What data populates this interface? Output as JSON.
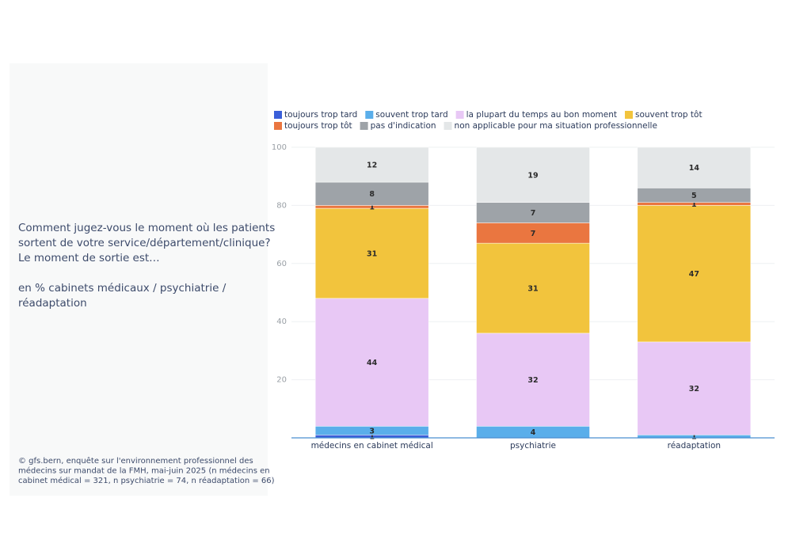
{
  "question_lines": [
    "Comment jugez-vous le moment où les patients",
    "sortent de votre service/département/clinique?",
    "Le moment de sortie est…"
  ],
  "subtitle_lines": [
    "en % cabinets médicaux / psychiatrie /",
    "réadaptation"
  ],
  "source_lines": [
    "© gfs.bern, enquête sur l'environnement professionnel des",
    "médecins sur mandat de la FMH, mai-juin 2025 (n médecins en",
    "cabinet médical = 321, n psychiatrie = 74, n réadaptation = 66)"
  ],
  "chart_data": {
    "type": "stacked_bar",
    "categories": [
      "médecins en cabinet médical",
      "psychiatrie",
      "réadaptation"
    ],
    "series": [
      {
        "name": "toujours trop tard",
        "color": "#3a5fd9",
        "values": [
          1,
          0,
          0
        ]
      },
      {
        "name": "souvent trop tard",
        "color": "#5aaeea",
        "values": [
          3,
          4,
          1
        ]
      },
      {
        "name": "la plupart du temps au bon moment",
        "color": "#e8c8f5",
        "values": [
          44,
          32,
          32
        ]
      },
      {
        "name": "souvent trop tôt",
        "color": "#f2c43d",
        "values": [
          31,
          31,
          47
        ]
      },
      {
        "name": "toujours trop tôt",
        "color": "#ea7640",
        "values": [
          1,
          7,
          1
        ]
      },
      {
        "name": "pas d'indication",
        "color": "#9ea3a8",
        "values": [
          8,
          7,
          5
        ]
      },
      {
        "name": "non applicable pour ma situation professionnelle",
        "color": "#e4e7e8",
        "values": [
          12,
          19,
          14
        ]
      }
    ],
    "ylim": [
      0,
      100
    ],
    "yticks": [
      20,
      40,
      60,
      80,
      100
    ],
    "grid": true
  }
}
